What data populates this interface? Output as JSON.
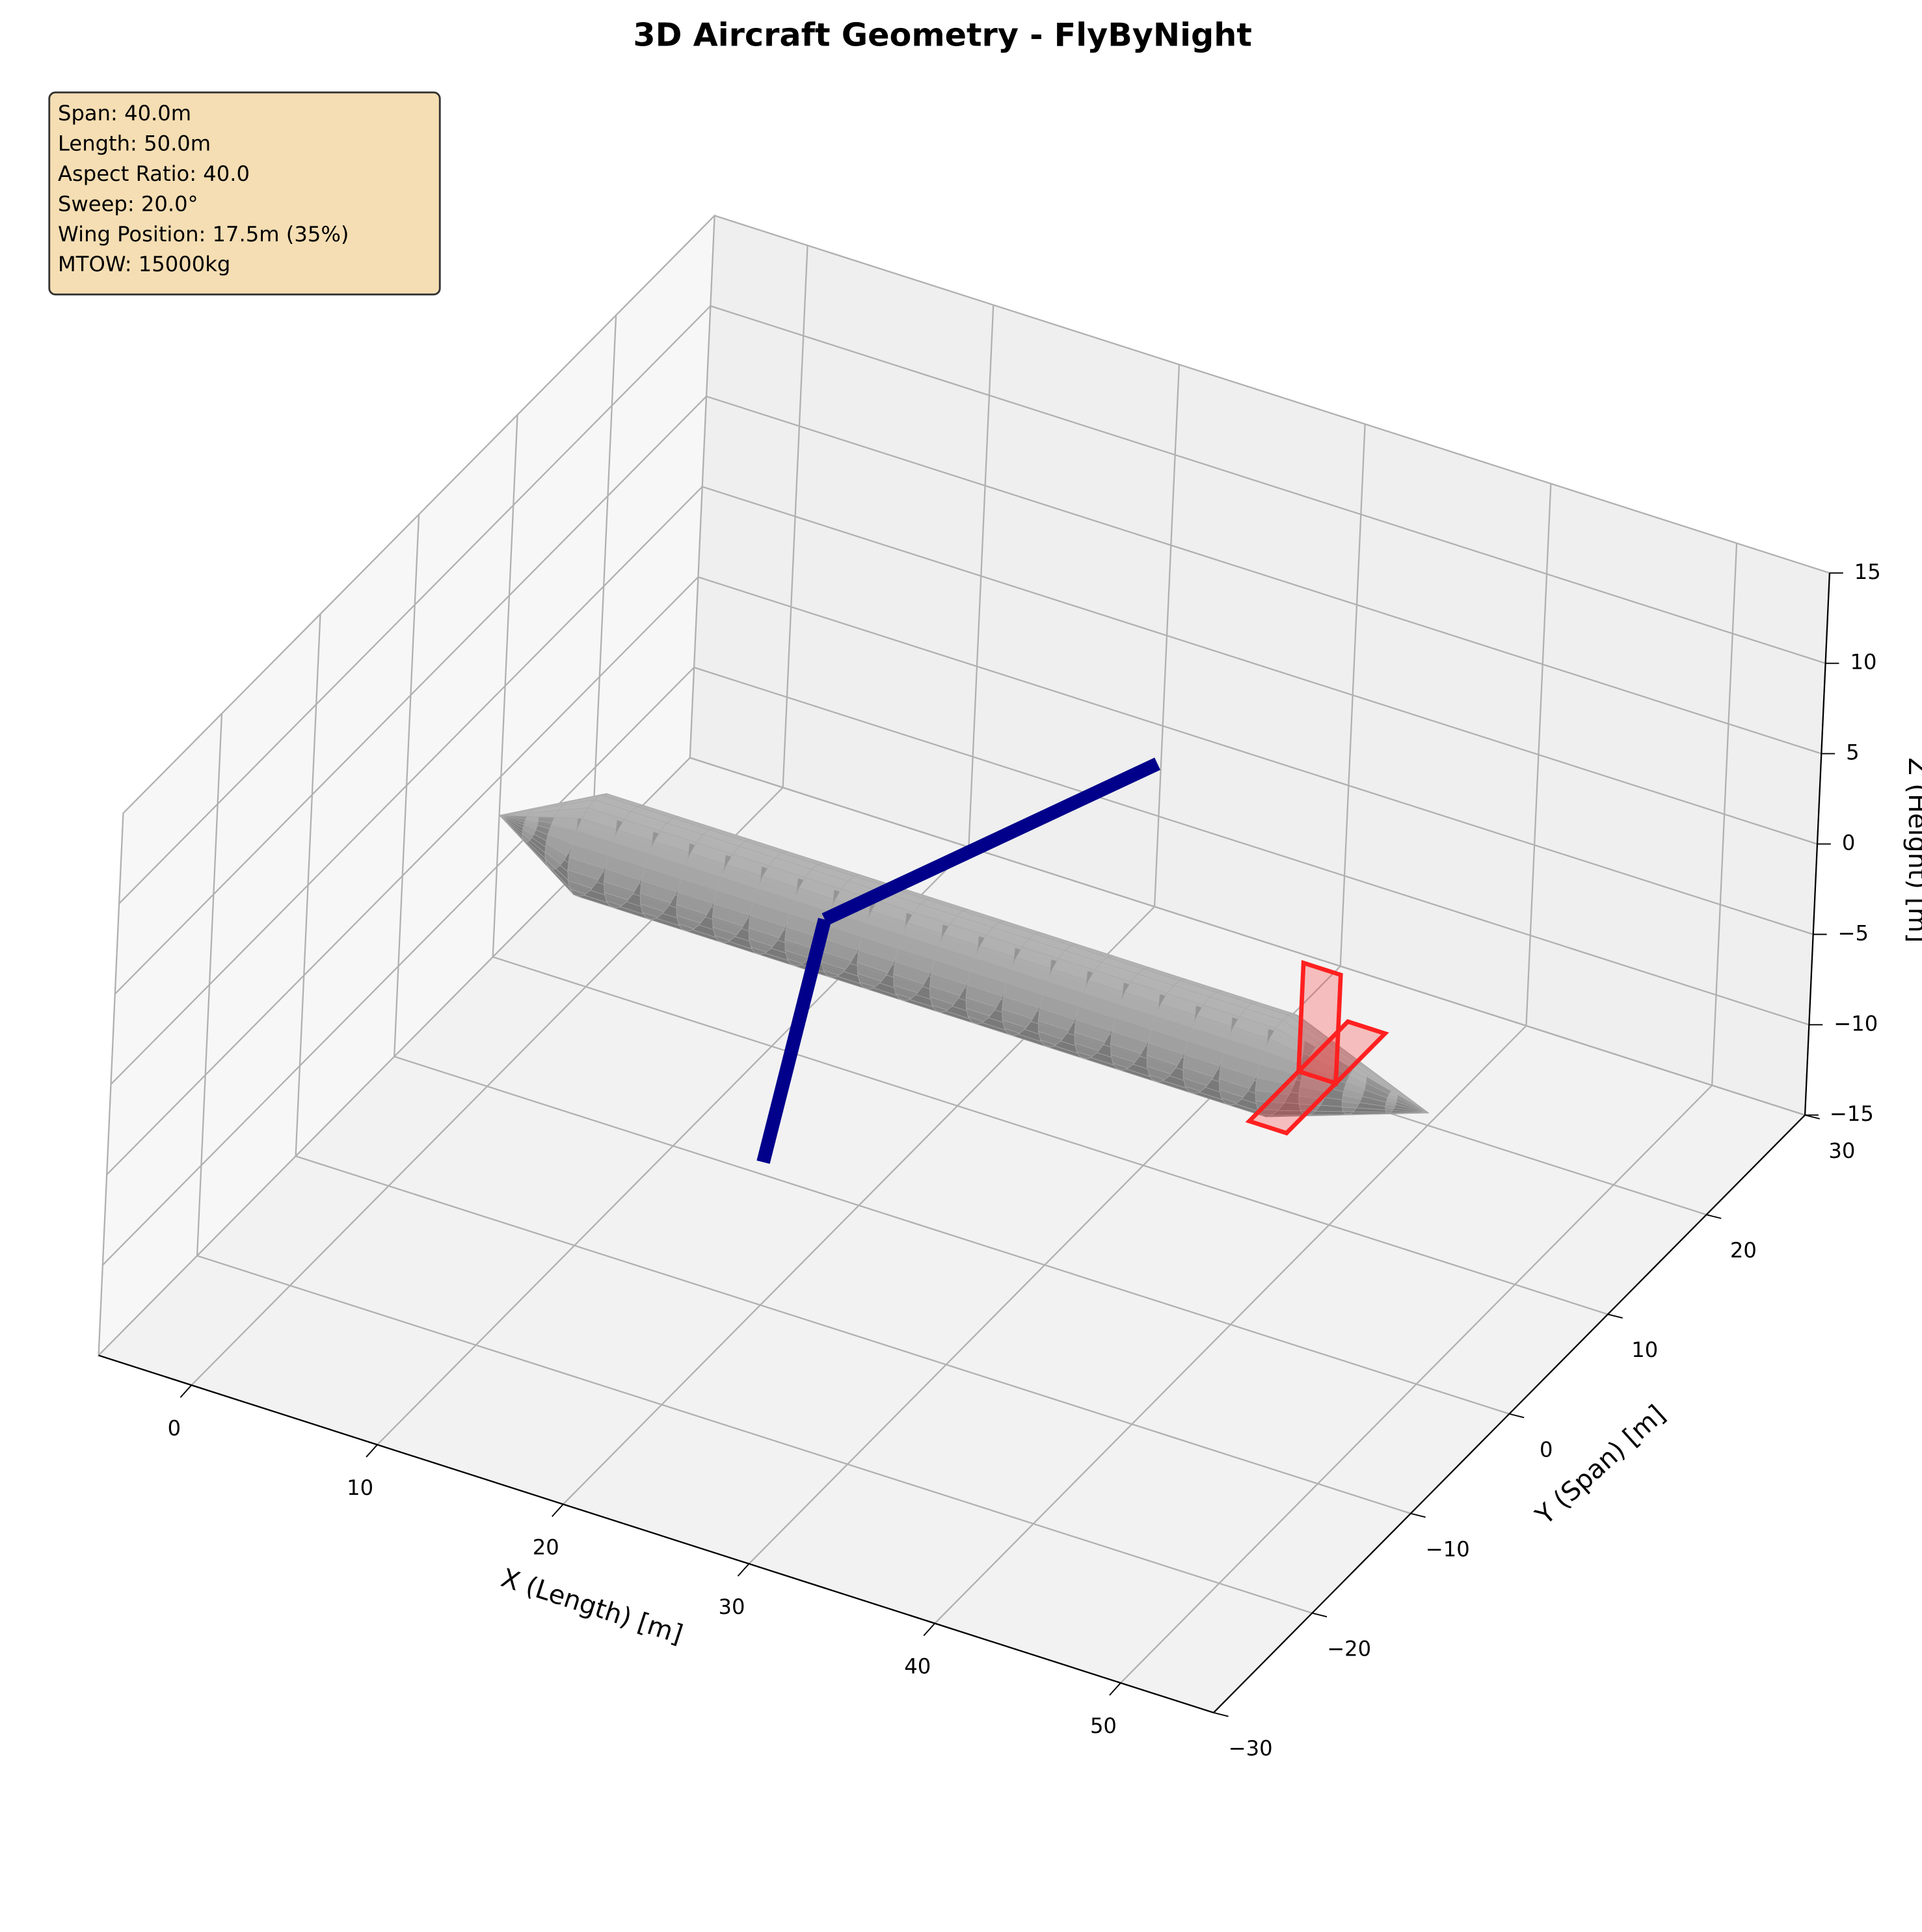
{
  "chart_data": {
    "type": "surface3d",
    "title": "3D Aircraft Geometry - FlyByNight",
    "xlabel": "X (Length) [m]",
    "ylabel": "Y (Span) [m]",
    "zlabel": "Z (Height) [m]",
    "xlim": [
      -5,
      55
    ],
    "ylim": [
      -30,
      30
    ],
    "zlim": [
      -15,
      15
    ],
    "xticks": [
      0,
      10,
      20,
      30,
      40,
      50
    ],
    "yticks": [
      {
        "value": -30,
        "label": "−30"
      },
      {
        "value": -20,
        "label": "−20"
      },
      {
        "value": -10,
        "label": "−10"
      },
      0,
      10,
      20,
      30
    ],
    "zticks": [
      {
        "value": -15,
        "label": "−15"
      },
      {
        "value": -10,
        "label": "−10"
      },
      {
        "value": -5,
        "label": "−5"
      },
      0,
      5,
      10,
      15
    ],
    "grid": true,
    "annotation": [
      "Span: 40.0m",
      "Length: 50.0m",
      "Aspect Ratio: 40.0",
      "Sweep: 20.0°",
      "Wing Position: 17.5m (35%)",
      "MTOW: 15000kg"
    ],
    "fuselage": {
      "color": "#a8a8a8",
      "x": [
        0,
        5,
        42,
        50
      ],
      "radius": [
        0,
        2.5,
        2.5,
        0
      ]
    },
    "wing": {
      "color": "#00008b",
      "x": [
        24.8,
        17.5,
        24.8
      ],
      "y": [
        -20,
        0,
        20
      ],
      "z": [
        0,
        0,
        0
      ]
    },
    "tail": {
      "color": "#ff2020",
      "horizontal": {
        "x": [
          43,
          45,
          45,
          43
        ],
        "y": [
          -5,
          -5,
          5,
          5
        ],
        "z": [
          0,
          0,
          0,
          0
        ]
      },
      "vertical": {
        "x": [
          43,
          45,
          45,
          43
        ],
        "y": [
          0,
          0,
          0,
          0
        ],
        "z": [
          0,
          0,
          6,
          6
        ]
      }
    }
  }
}
